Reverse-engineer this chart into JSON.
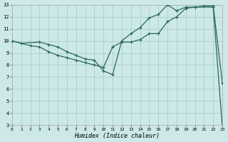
{
  "xlabel": "Humidex (Indice chaleur)",
  "bg_color": "#cce8e8",
  "grid_color": "#aad0d0",
  "line_color": "#2a6858",
  "xlim": [
    0,
    23
  ],
  "ylim": [
    3,
    13
  ],
  "xticks": [
    0,
    1,
    2,
    3,
    4,
    5,
    6,
    7,
    8,
    9,
    10,
    11,
    12,
    13,
    14,
    15,
    16,
    17,
    18,
    19,
    20,
    21,
    22,
    23
  ],
  "yticks": [
    3,
    4,
    5,
    6,
    7,
    8,
    9,
    10,
    11,
    12,
    13
  ],
  "line1_x": [
    0,
    1,
    3,
    4,
    5,
    6,
    7,
    8,
    9,
    10,
    11,
    12,
    13,
    14,
    15,
    16,
    17,
    18,
    19,
    20,
    22,
    23
  ],
  "line1_y": [
    10,
    9.8,
    9.9,
    9.7,
    9.5,
    9.1,
    8.8,
    8.5,
    8.4,
    7.5,
    7.2,
    10.0,
    10.6,
    11.1,
    11.9,
    12.2,
    13.0,
    12.5,
    12.8,
    12.8,
    12.8,
    2.8
  ],
  "line2_x": [
    0,
    2,
    3,
    4,
    5,
    6,
    7,
    8,
    9,
    10,
    11,
    12,
    13,
    14,
    15,
    16,
    17,
    18,
    19,
    20,
    21,
    22,
    23
  ],
  "line2_y": [
    10,
    9.6,
    9.5,
    9.1,
    8.8,
    8.6,
    8.4,
    8.2,
    8.0,
    7.8,
    9.5,
    9.9,
    9.9,
    10.1,
    10.6,
    10.6,
    11.6,
    12.0,
    12.7,
    12.8,
    12.9,
    12.9,
    6.5
  ]
}
